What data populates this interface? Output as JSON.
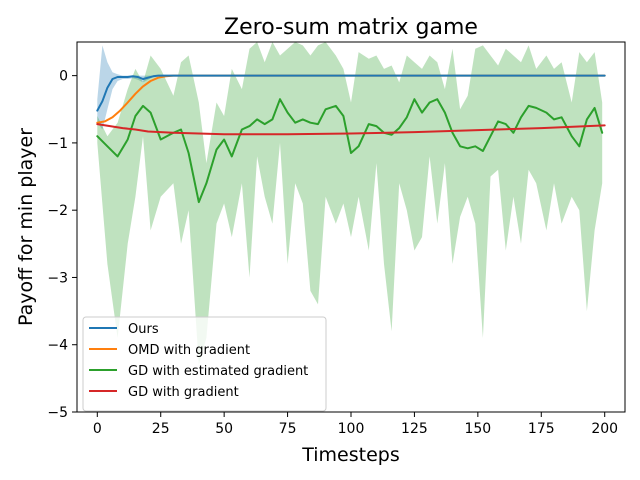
{
  "chart_data": {
    "type": "line",
    "title": "Zero-sum matrix game",
    "xlabel": "Timesteps",
    "ylabel": "Payoff for min player",
    "xlim": [
      -8,
      208
    ],
    "ylim": [
      -5,
      0.5
    ],
    "xticks": [
      0,
      25,
      50,
      75,
      100,
      125,
      150,
      175,
      200
    ],
    "yticks": [
      0,
      -1,
      -2,
      -3,
      -4,
      -5
    ],
    "ytick_labels": [
      "0",
      "−1",
      "−2",
      "−3",
      "−4",
      "−5"
    ],
    "legend_position": "lower-left",
    "grid": false,
    "series": [
      {
        "name": "Ours",
        "color": "#1f77b4",
        "x": [
          0,
          2,
          4,
          6,
          8,
          10,
          12,
          14,
          16,
          18,
          20,
          22,
          24,
          26,
          28,
          30,
          32,
          200
        ],
        "y": [
          -0.52,
          -0.38,
          -0.18,
          -0.05,
          -0.02,
          -0.02,
          -0.02,
          -0.01,
          -0.02,
          -0.05,
          -0.03,
          -0.01,
          0.0,
          0.0,
          0.0,
          0.0,
          0.0,
          0.0
        ],
        "band_upper": [
          -0.35,
          0.45,
          0.2,
          0.05,
          0.02,
          0.0,
          0.0,
          0.0,
          0.0,
          0.0,
          0.0,
          0.0,
          0.0,
          0.0,
          0.0,
          0.0,
          0.0,
          0.0
        ],
        "band_lower": [
          -0.7,
          -0.8,
          -0.5,
          -0.2,
          -0.08,
          -0.05,
          -0.05,
          -0.04,
          -0.06,
          -0.1,
          -0.06,
          -0.02,
          0.0,
          0.0,
          0.0,
          0.0,
          0.0,
          0.0
        ]
      },
      {
        "name": "OMD with gradient",
        "color": "#ff7f0e",
        "x": [
          0,
          3,
          6,
          9,
          12,
          15,
          18,
          21,
          24,
          27,
          30,
          33,
          40,
          50,
          100,
          150,
          200
        ],
        "y": [
          -0.7,
          -0.68,
          -0.62,
          -0.52,
          -0.4,
          -0.27,
          -0.16,
          -0.08,
          -0.03,
          -0.01,
          0.0,
          0.0,
          0.0,
          0.0,
          0.0,
          0.0,
          0.0
        ]
      },
      {
        "name": "GD with estimated gradient",
        "color": "#2ca02c",
        "x": [
          0,
          4,
          8,
          12,
          15,
          18,
          21,
          25,
          30,
          33,
          36,
          40,
          43,
          47,
          50,
          53,
          57,
          60,
          63,
          66,
          69,
          72,
          75,
          78,
          81,
          84,
          87,
          90,
          94,
          97,
          100,
          103,
          107,
          110,
          113,
          116,
          119,
          122,
          125,
          128,
          131,
          134,
          137,
          140,
          143,
          146,
          149,
          152,
          155,
          158,
          161,
          164,
          167,
          170,
          173,
          177,
          180,
          183,
          187,
          190,
          193,
          196,
          199
        ],
        "y": [
          -0.9,
          -1.05,
          -1.2,
          -0.95,
          -0.6,
          -0.45,
          -0.55,
          -0.95,
          -0.85,
          -0.8,
          -1.15,
          -1.88,
          -1.6,
          -1.1,
          -0.95,
          -1.2,
          -0.8,
          -0.75,
          -0.65,
          -0.72,
          -0.65,
          -0.35,
          -0.55,
          -0.7,
          -0.65,
          -0.7,
          -0.72,
          -0.5,
          -0.45,
          -0.6,
          -1.15,
          -1.05,
          -0.72,
          -0.75,
          -0.85,
          -0.88,
          -0.78,
          -0.62,
          -0.35,
          -0.55,
          -0.4,
          -0.35,
          -0.55,
          -0.85,
          -1.05,
          -1.08,
          -1.05,
          -1.12,
          -0.9,
          -0.68,
          -0.72,
          -0.85,
          -0.62,
          -0.45,
          -0.48,
          -0.55,
          -0.65,
          -0.62,
          -0.9,
          -1.05,
          -0.65,
          -0.48,
          -0.85
        ],
        "band_upper": [
          -0.6,
          -0.9,
          -0.7,
          -0.2,
          0.1,
          -0.1,
          0.3,
          0.1,
          -0.3,
          0.2,
          0.3,
          -0.4,
          -1.3,
          -0.4,
          -0.6,
          0.1,
          -0.2,
          0.4,
          0.5,
          0.2,
          0.5,
          0.3,
          0.4,
          0.5,
          0.45,
          0.3,
          0.45,
          0.5,
          0.3,
          0.1,
          -0.4,
          0.35,
          0.25,
          0.3,
          0.1,
          0.15,
          -0.1,
          0.3,
          0.2,
          0.1,
          0.3,
          0.2,
          -0.2,
          0.4,
          -0.5,
          -0.3,
          0.4,
          0.45,
          0.3,
          0.15,
          0.4,
          0.3,
          0.2,
          0.45,
          0.1,
          0.3,
          0.1,
          0.2,
          -0.4,
          0.35,
          0.2,
          0.35,
          -0.4
        ],
        "band_lower": [
          -1.0,
          -2.8,
          -3.9,
          -2.5,
          -1.8,
          -0.9,
          -2.3,
          -1.8,
          -1.6,
          -2.5,
          -2.0,
          -4.3,
          -3.9,
          -2.2,
          -1.9,
          -2.4,
          -1.6,
          -3.0,
          -1.2,
          -1.8,
          -2.2,
          -1.0,
          -2.8,
          -1.6,
          -1.9,
          -3.2,
          -3.4,
          -1.8,
          -2.2,
          -1.9,
          -2.4,
          -1.8,
          -2.6,
          -1.3,
          -2.8,
          -3.8,
          -1.6,
          -2.0,
          -2.6,
          -2.4,
          -1.2,
          -2.2,
          -1.3,
          -2.8,
          -2.1,
          -1.8,
          -2.2,
          -3.9,
          -1.5,
          -1.4,
          -2.6,
          -1.8,
          -2.5,
          -1.4,
          -1.6,
          -2.3,
          -1.6,
          -2.2,
          -1.8,
          -2.0,
          -3.5,
          -2.3,
          -1.6
        ]
      },
      {
        "name": "GD with gradient",
        "color": "#d62728",
        "x": [
          0,
          5,
          10,
          15,
          20,
          25,
          30,
          40,
          50,
          60,
          75,
          100,
          125,
          150,
          175,
          200
        ],
        "y": [
          -0.72,
          -0.75,
          -0.78,
          -0.8,
          -0.83,
          -0.84,
          -0.85,
          -0.86,
          -0.87,
          -0.87,
          -0.87,
          -0.86,
          -0.84,
          -0.81,
          -0.78,
          -0.74
        ]
      }
    ]
  }
}
